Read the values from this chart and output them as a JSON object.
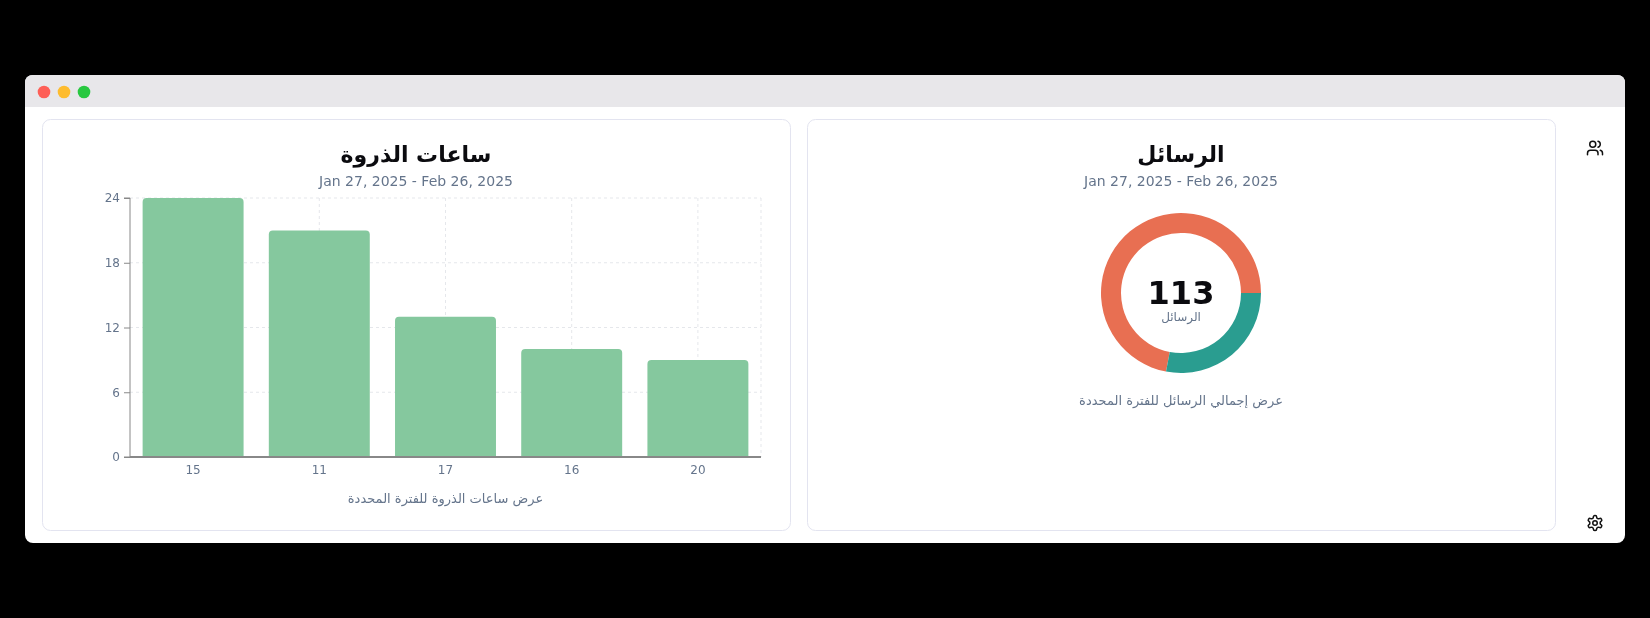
{
  "chart_data": [
    {
      "type": "bar",
      "title": "ساعات الذروة",
      "subtitle": "Jan 27, 2025 - Feb 26, 2025",
      "categories": [
        "15",
        "11",
        "17",
        "16",
        "20"
      ],
      "values": [
        24,
        21,
        13,
        10,
        9
      ],
      "color": "#85c89e",
      "ylim": [
        0,
        24
      ],
      "yticks": [
        0,
        6,
        12,
        18,
        24
      ],
      "grid": true,
      "annotations": [
        "عرض ساعات الذروة للفترة المحددة"
      ]
    },
    {
      "type": "donut",
      "title": "الرسائل",
      "subtitle": "Jan 27, 2025 - Feb 26, 2025",
      "categories": [
        null,
        null
      ],
      "values": [
        72,
        28
      ],
      "colors": [
        "#e86f52",
        "#2a9d90"
      ],
      "annotations": [
        "113",
        "الرسائل",
        "عرض إجمالي الرسائل للفترة المحددة"
      ]
    }
  ]
}
